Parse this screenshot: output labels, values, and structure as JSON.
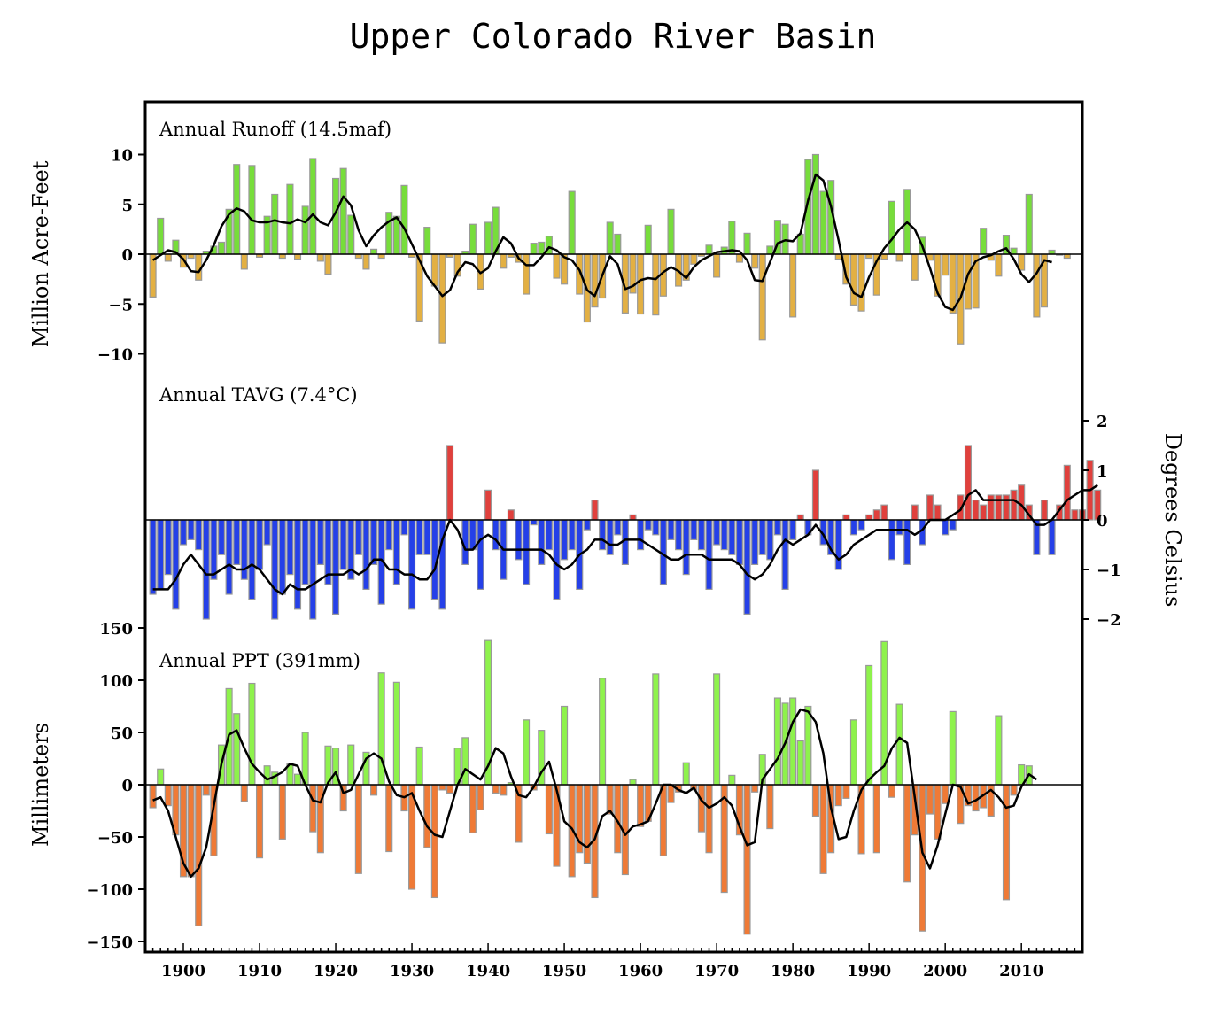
{
  "title": "Upper Colorado River Basin",
  "left_label_top": "Million Acre-Feet",
  "left_label_bottom": "Millimeters",
  "right_label": "Degrees Celsius",
  "colors": {
    "runoff_pos": "#77dd3b",
    "runoff_neg": "#e3b043",
    "tavg_pos": "#e0403c",
    "tavg_neg": "#2540e8",
    "ppt_pos": "#8ef24c",
    "ppt_neg": "#ef7a36",
    "bar_edge": "#999999",
    "line": "#000000"
  },
  "x_axis": {
    "ticks": [
      1900,
      1910,
      1920,
      1930,
      1940,
      1950,
      1960,
      1970,
      1980,
      1990,
      2000,
      2010
    ],
    "xlim": [
      1895,
      2018
    ]
  },
  "chart_data": [
    {
      "type": "bar",
      "panel_label": "Annual Runoff (14.5maf)",
      "years_start": 1896,
      "ylim": [
        -10,
        10
      ],
      "yticks": [
        10,
        5,
        0,
        -5,
        -10
      ],
      "values": [
        -4.3,
        3.6,
        -0.7,
        1.4,
        -1.3,
        -0.4,
        -2.6,
        0.3,
        0.8,
        1.2,
        4.5,
        9.0,
        -1.5,
        8.9,
        -0.3,
        3.8,
        6.0,
        -0.4,
        7.0,
        -0.5,
        4.8,
        9.6,
        -0.7,
        -2.0,
        7.6,
        8.6,
        3.9,
        -0.4,
        -1.5,
        0.5,
        -0.4,
        4.2,
        3.8,
        6.9,
        -0.3,
        -6.7,
        2.7,
        -3.2,
        -8.9,
        -0.3,
        -2.2,
        0.3,
        3.0,
        -3.5,
        3.2,
        4.7,
        -1.4,
        -0.3,
        -0.8,
        -4.0,
        1.1,
        1.2,
        1.8,
        -2.4,
        -3.0,
        6.3,
        -4.0,
        -6.8,
        -5.3,
        -4.4,
        3.2,
        2.0,
        -5.9,
        -3.9,
        -6.0,
        2.9,
        -6.1,
        -4.2,
        4.5,
        -3.2,
        -2.6,
        -1.0,
        -0.2,
        0.9,
        -2.3,
        0.7,
        3.3,
        -0.8,
        2.1,
        -1.4,
        -8.6,
        0.8,
        3.4,
        3.0,
        -6.3,
        2.0,
        9.5,
        10.0,
        6.3,
        7.4,
        -0.5,
        -3.0,
        -5.1,
        -5.7,
        -0.4,
        -4.1,
        -0.5,
        5.3,
        -0.7,
        6.5,
        -2.6,
        1.7,
        -0.6,
        -4.2,
        -2.1,
        -5.9,
        -9.0,
        -5.5,
        -5.4,
        2.6,
        -0.6,
        -2.2,
        1.9,
        0.6,
        -1.6,
        6.0,
        -6.3,
        -5.3,
        0.4,
        -0.1,
        -0.4
      ],
      "smoothed": [
        -0.6,
        -0.1,
        0.4,
        0.2,
        -0.5,
        -1.7,
        -1.8,
        -0.6,
        0.9,
        2.8,
        4.0,
        4.6,
        4.3,
        3.4,
        3.2,
        3.2,
        3.4,
        3.2,
        3.1,
        3.5,
        3.2,
        4.0,
        3.2,
        2.9,
        4.2,
        5.8,
        4.9,
        2.4,
        0.8,
        1.9,
        2.7,
        3.3,
        3.7,
        2.6,
        1.0,
        -0.6,
        -2.2,
        -3.2,
        -4.2,
        -3.6,
        -1.8,
        -0.8,
        -1.0,
        -1.9,
        -1.4,
        0.3,
        1.7,
        1.1,
        -0.4,
        -1.1,
        -1.1,
        -0.3,
        0.7,
        0.4,
        -0.3,
        -0.6,
        -1.6,
        -3.6,
        -4.2,
        -2.1,
        -0.2,
        -1.0,
        -3.5,
        -3.2,
        -2.6,
        -2.4,
        -2.5,
        -1.8,
        -1.3,
        -1.7,
        -2.4,
        -1.3,
        -0.6,
        -0.2,
        0.2,
        0.3,
        0.4,
        0.3,
        -0.6,
        -2.6,
        -2.7,
        -0.8,
        1.1,
        1.4,
        1.3,
        2.1,
        5.4,
        8.0,
        7.4,
        4.8,
        1.4,
        -2.3,
        -3.9,
        -4.3,
        -2.3,
        -0.7,
        0.6,
        1.5,
        2.5,
        3.2,
        2.5,
        0.8,
        -1.4,
        -3.9,
        -5.3,
        -5.6,
        -4.4,
        -2.0,
        -0.7,
        -0.3,
        -0.1,
        0.3,
        0.6,
        -0.5,
        -2.0,
        -2.8,
        -1.9,
        -0.6,
        -0.8
      ]
    },
    {
      "type": "bar",
      "panel_label": "Annual TAVG (7.4°C)",
      "years_start": 1896,
      "ylim": [
        -2,
        2
      ],
      "yticks": [
        2,
        1,
        0,
        -1,
        -2
      ],
      "values": [
        -1.5,
        -1.4,
        -1.1,
        -1.8,
        -0.5,
        -0.4,
        -0.6,
        -2.0,
        -1.2,
        -0.7,
        -1.5,
        -0.9,
        -1.2,
        -1.6,
        -1.0,
        -0.5,
        -2.0,
        -1.5,
        -1.1,
        -1.8,
        -1.3,
        -2.0,
        -0.9,
        -1.3,
        -1.9,
        -1.0,
        -1.2,
        -0.7,
        -1.4,
        -0.9,
        -1.7,
        -0.6,
        -1.3,
        -0.3,
        -1.8,
        -0.7,
        -0.7,
        -1.6,
        -1.8,
        1.5,
        0.0,
        -0.9,
        -0.6,
        -1.4,
        0.6,
        -0.6,
        -1.2,
        0.2,
        -0.8,
        -1.3,
        -0.1,
        -0.9,
        -0.6,
        -1.6,
        -0.8,
        -0.6,
        -1.4,
        -0.2,
        0.4,
        -0.6,
        -0.7,
        -0.3,
        -0.9,
        0.1,
        -0.6,
        -0.2,
        -0.3,
        -1.3,
        -0.4,
        -0.6,
        -1.1,
        -0.4,
        -0.6,
        -1.4,
        -0.5,
        -0.6,
        -0.7,
        -0.9,
        -1.9,
        -0.9,
        -0.7,
        -0.8,
        -0.3,
        -1.4,
        -0.4,
        0.1,
        -0.3,
        1.0,
        -0.5,
        -0.7,
        -1.0,
        0.1,
        -0.3,
        -0.2,
        0.1,
        0.2,
        0.3,
        -0.8,
        -0.3,
        -0.9,
        0.3,
        -0.5,
        0.5,
        0.3,
        -0.3,
        -0.2,
        0.5,
        1.5,
        0.4,
        0.3,
        0.5,
        0.5,
        0.5,
        0.6,
        0.7,
        0.3,
        -0.7,
        0.4,
        -0.7,
        0.3,
        1.1,
        0.2,
        0.2,
        1.2,
        0.6
      ],
      "smoothed": [
        -1.4,
        -1.4,
        -1.4,
        -1.2,
        -0.9,
        -0.7,
        -0.9,
        -1.1,
        -1.1,
        -1.0,
        -0.9,
        -1.0,
        -1.0,
        -0.9,
        -1.0,
        -1.2,
        -1.4,
        -1.5,
        -1.3,
        -1.4,
        -1.4,
        -1.3,
        -1.2,
        -1.1,
        -1.1,
        -1.1,
        -1.0,
        -1.1,
        -1.0,
        -0.8,
        -0.8,
        -1.0,
        -1.0,
        -1.1,
        -1.1,
        -1.2,
        -1.2,
        -1.0,
        -0.4,
        0.0,
        -0.2,
        -0.6,
        -0.6,
        -0.4,
        -0.3,
        -0.4,
        -0.6,
        -0.6,
        -0.6,
        -0.6,
        -0.6,
        -0.6,
        -0.7,
        -0.9,
        -1.0,
        -0.9,
        -0.7,
        -0.6,
        -0.4,
        -0.4,
        -0.5,
        -0.5,
        -0.4,
        -0.4,
        -0.4,
        -0.5,
        -0.6,
        -0.7,
        -0.8,
        -0.8,
        -0.7,
        -0.7,
        -0.7,
        -0.8,
        -0.8,
        -0.8,
        -0.8,
        -0.9,
        -1.1,
        -1.2,
        -1.1,
        -0.9,
        -0.6,
        -0.4,
        -0.5,
        -0.4,
        -0.3,
        -0.1,
        -0.3,
        -0.6,
        -0.8,
        -0.7,
        -0.5,
        -0.4,
        -0.3,
        -0.2,
        -0.2,
        -0.2,
        -0.2,
        -0.2,
        -0.3,
        -0.2,
        0.0,
        0.0,
        0.0,
        0.1,
        0.2,
        0.5,
        0.6,
        0.4,
        0.4,
        0.4,
        0.4,
        0.4,
        0.3,
        0.1,
        -0.1,
        -0.1,
        0.0,
        0.2,
        0.4,
        0.5,
        0.6,
        0.6,
        0.7
      ]
    },
    {
      "type": "bar",
      "panel_label": "Annual PPT (391mm)",
      "years_start": 1896,
      "ylim": [
        -150,
        150
      ],
      "yticks": [
        150,
        100,
        50,
        0,
        -50,
        -100,
        -150
      ],
      "values": [
        -22,
        15,
        -20,
        -48,
        -88,
        -88,
        -135,
        -10,
        -68,
        38,
        92,
        68,
        -16,
        97,
        -70,
        18,
        12,
        -52,
        20,
        10,
        50,
        -45,
        -65,
        37,
        35,
        -25,
        38,
        -85,
        31,
        -10,
        107,
        -64,
        98,
        -25,
        -100,
        36,
        -60,
        -108,
        -5,
        -8,
        35,
        45,
        -46,
        -24,
        138,
        -8,
        -10,
        2,
        -55,
        62,
        -5,
        52,
        -47,
        -78,
        75,
        -88,
        -65,
        -75,
        -108,
        102,
        -28,
        -65,
        -86,
        5,
        -40,
        -35,
        106,
        -68,
        -17,
        -7,
        21,
        -5,
        -45,
        -65,
        106,
        -103,
        9,
        -48,
        -143,
        -7,
        29,
        -42,
        83,
        78,
        83,
        42,
        75,
        -30,
        -85,
        -65,
        -20,
        -13,
        62,
        -66,
        114,
        -65,
        137,
        -12,
        77,
        -93,
        -48,
        -140,
        -28,
        -52,
        -18,
        70,
        -37,
        -20,
        -25,
        -22,
        -30,
        66,
        -110,
        -10,
        19,
        18
      ],
      "smoothed": [
        -15,
        -12,
        -25,
        -50,
        -75,
        -88,
        -80,
        -60,
        -20,
        20,
        48,
        52,
        35,
        20,
        12,
        5,
        8,
        12,
        20,
        18,
        0,
        -15,
        -17,
        2,
        12,
        -8,
        -5,
        10,
        25,
        30,
        25,
        3,
        -10,
        -12,
        -8,
        -25,
        -40,
        -48,
        -50,
        -25,
        0,
        15,
        10,
        5,
        18,
        35,
        30,
        8,
        -10,
        -12,
        -2,
        12,
        22,
        -5,
        -35,
        -42,
        -55,
        -60,
        -52,
        -30,
        -25,
        -35,
        -48,
        -40,
        -38,
        -35,
        -18,
        0,
        0,
        -5,
        -8,
        -3,
        -15,
        -22,
        -18,
        -12,
        -20,
        -40,
        -58,
        -55,
        5,
        15,
        25,
        40,
        60,
        72,
        70,
        60,
        30,
        -22,
        -52,
        -50,
        -25,
        -5,
        5,
        12,
        18,
        35,
        45,
        40,
        -12,
        -65,
        -80,
        -58,
        -28,
        0,
        -2,
        -18,
        -15,
        -10,
        -5,
        -12,
        -22,
        -20,
        -2,
        10,
        5
      ]
    }
  ]
}
